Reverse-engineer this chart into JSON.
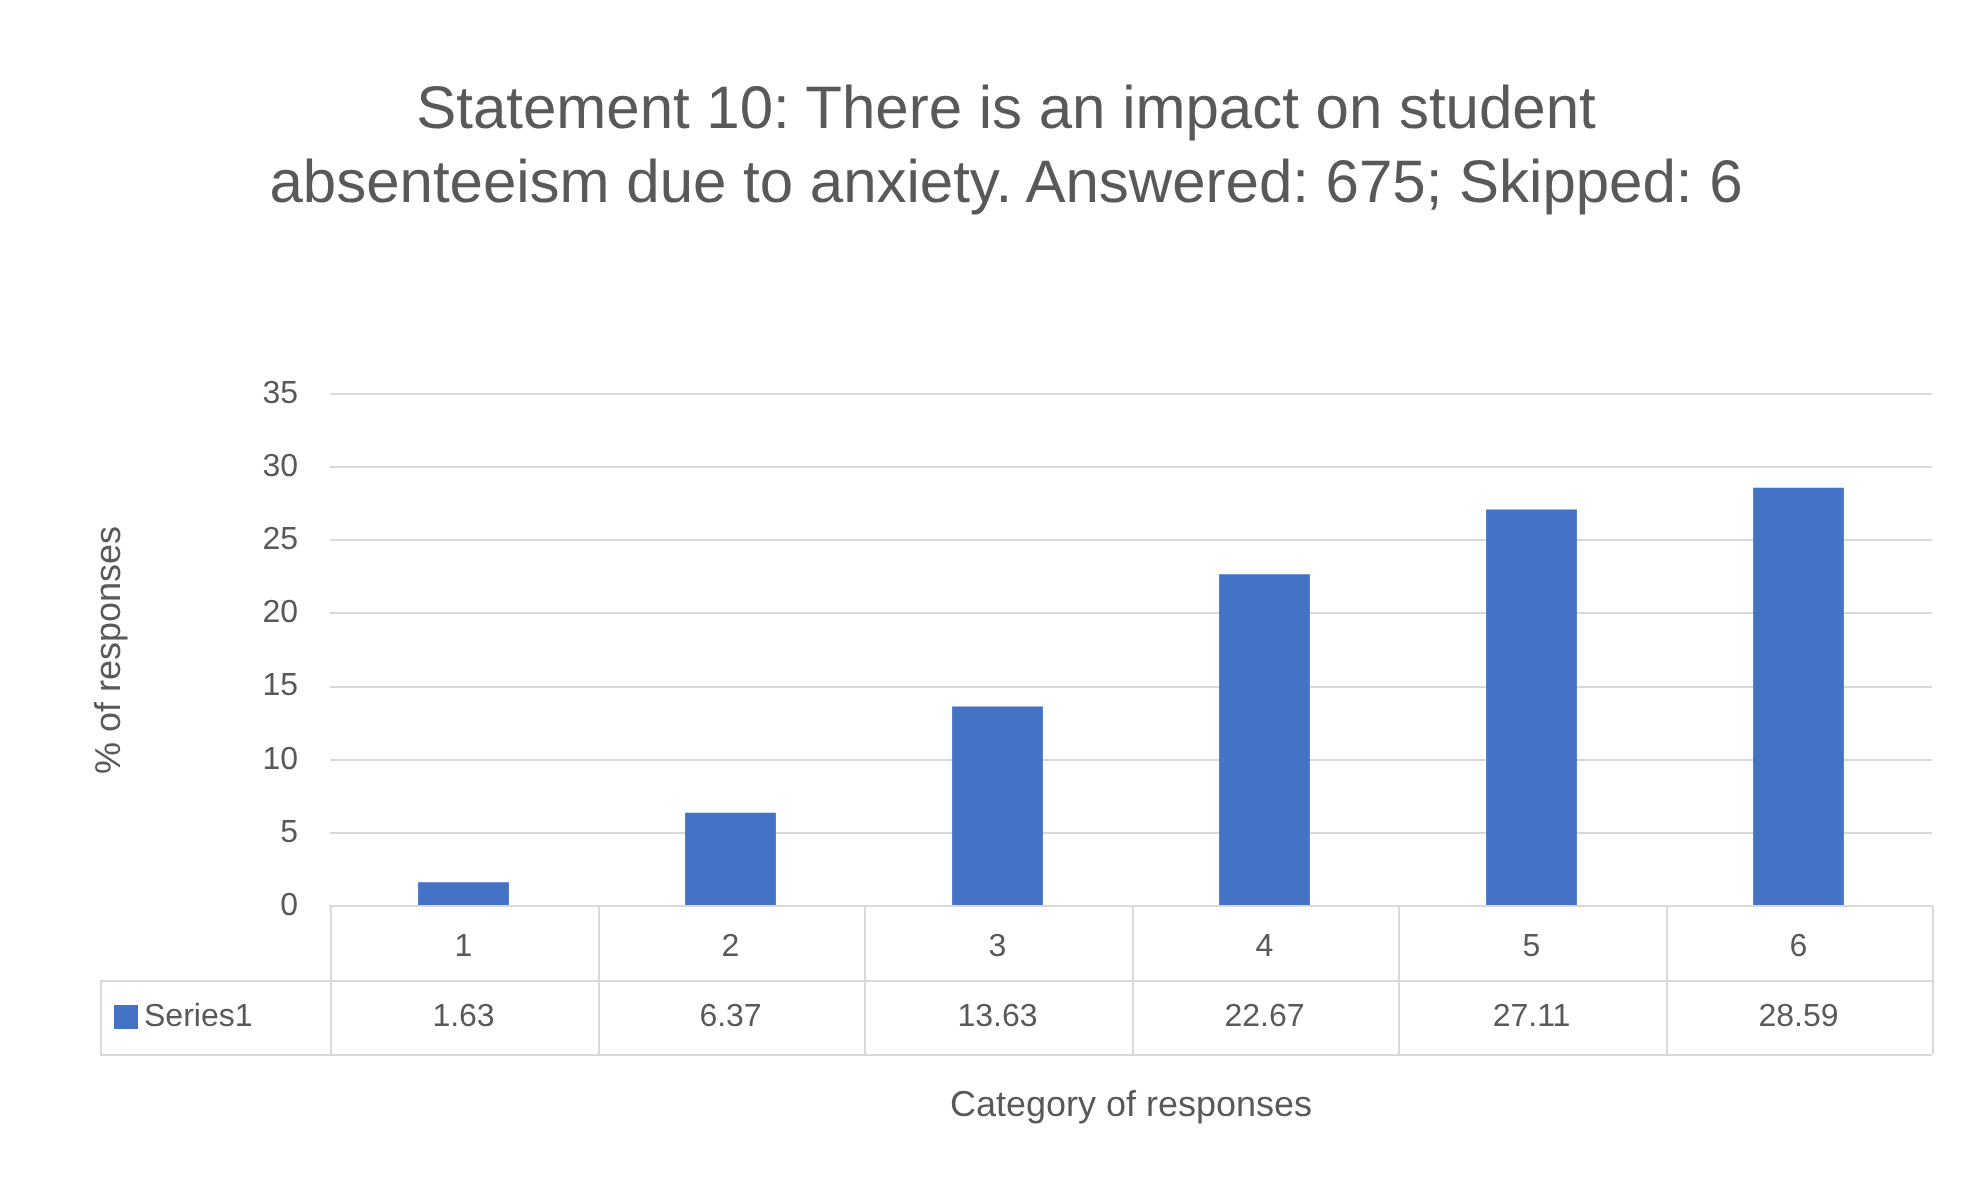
{
  "chart_data": {
    "type": "bar",
    "title": "Statement 10: There is an impact on student absenteeism due to anxiety. Answered: 675; Skipped: 6",
    "xlabel": "Category of responses",
    "ylabel": "% of responses",
    "categories": [
      "1",
      "2",
      "3",
      "4",
      "5",
      "6"
    ],
    "series": [
      {
        "name": "Series1",
        "color": "#4472c4",
        "values": [
          1.63,
          6.37,
          13.63,
          22.67,
          27.11,
          28.59
        ]
      }
    ],
    "ylim": [
      0,
      35
    ],
    "yticks": [
      0,
      5,
      10,
      15,
      20,
      25,
      30,
      35
    ],
    "grid": "y",
    "data_labels": true
  }
}
